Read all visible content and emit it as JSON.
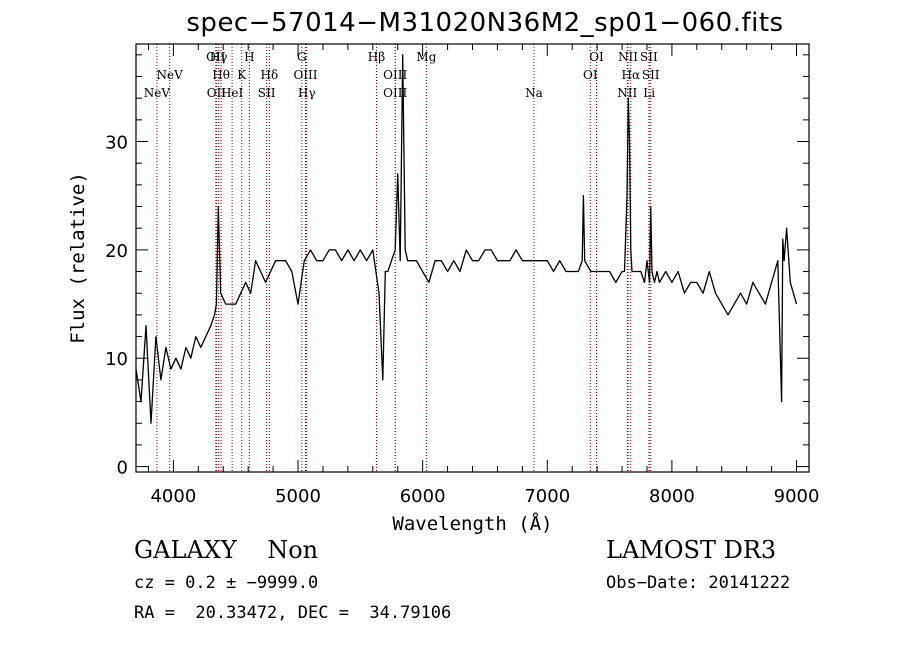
{
  "chart_data": {
    "type": "line",
    "title": "spec−57014−M31020N36M2_sp01−060.fits",
    "xlabel": "Wavelength (Å)",
    "ylabel": "Flux (relative)",
    "xlim": [
      3700,
      9100
    ],
    "ylim": [
      -0.5,
      39
    ],
    "xticks": [
      4000,
      5000,
      6000,
      7000,
      8000,
      9000
    ],
    "yticks": [
      0,
      10,
      20,
      30
    ],
    "line_color": "#000000",
    "marker_color": "#8b0000",
    "series": [
      {
        "name": "flux",
        "x": [
          3700,
          3740,
          3780,
          3820,
          3860,
          3900,
          3940,
          3980,
          4020,
          4060,
          4100,
          4140,
          4180,
          4220,
          4260,
          4300,
          4330,
          4345,
          4360,
          4380,
          4420,
          4460,
          4500,
          4540,
          4580,
          4620,
          4660,
          4700,
          4740,
          4780,
          4820,
          4860,
          4900,
          4950,
          5000,
          5050,
          5100,
          5150,
          5200,
          5250,
          5300,
          5350,
          5400,
          5450,
          5500,
          5550,
          5600,
          5650,
          5680,
          5700,
          5720,
          5750,
          5780,
          5800,
          5820,
          5840,
          5860,
          5880,
          5900,
          5950,
          6000,
          6050,
          6100,
          6150,
          6200,
          6250,
          6300,
          6350,
          6400,
          6450,
          6500,
          6550,
          6600,
          6650,
          6700,
          6750,
          6800,
          6850,
          6900,
          6950,
          7000,
          7050,
          7100,
          7150,
          7200,
          7250,
          7280,
          7290,
          7300,
          7350,
          7400,
          7450,
          7500,
          7550,
          7600,
          7620,
          7640,
          7650,
          7660,
          7670,
          7680,
          7700,
          7720,
          7750,
          7780,
          7800,
          7820,
          7830,
          7840,
          7860,
          7880,
          7900,
          7950,
          8000,
          8050,
          8100,
          8150,
          8200,
          8250,
          8300,
          8350,
          8400,
          8450,
          8500,
          8550,
          8600,
          8650,
          8700,
          8750,
          8800,
          8850,
          8880,
          8890,
          8900,
          8920,
          8950,
          9000
        ],
        "y": [
          9,
          6,
          13,
          4,
          12,
          8,
          11,
          9,
          10,
          9,
          11,
          10,
          12,
          11,
          12,
          13,
          14,
          15,
          24,
          16,
          15,
          15,
          15,
          16,
          17,
          16,
          19,
          18,
          17,
          18,
          19,
          19,
          19,
          18,
          15,
          19,
          20,
          19,
          19,
          20,
          20,
          19,
          20,
          19,
          20,
          19,
          20,
          16,
          8,
          18,
          18,
          19,
          20,
          27,
          19,
          38,
          20,
          19,
          19,
          19,
          18,
          17,
          19,
          19,
          18,
          19,
          18,
          20,
          19,
          19,
          20,
          20,
          19,
          19,
          19,
          20,
          19,
          19,
          19,
          19,
          19,
          18,
          19,
          18,
          18,
          18,
          19,
          25,
          19,
          18,
          18,
          18,
          18,
          17,
          18,
          18,
          25,
          34,
          30,
          20,
          18,
          18,
          18,
          18,
          17,
          19,
          17,
          24,
          18,
          17,
          18,
          17,
          18,
          17,
          18,
          16,
          17,
          17,
          16,
          18,
          16,
          15,
          14,
          15,
          16,
          15,
          17,
          16,
          15,
          17,
          19,
          6,
          21,
          19,
          22,
          17,
          15
        ]
      }
    ],
    "line_markers": [
      {
        "label": "NeV",
        "wavelength": 3868,
        "row": 3
      },
      {
        "label": "NeV",
        "wavelength": 3970,
        "row": 2
      },
      {
        "label": "OII",
        "wavelength": 4340,
        "row": 1
      },
      {
        "label": "OII",
        "wavelength": 4345,
        "row": 3
      },
      {
        "label": "Hγ",
        "wavelength": 4363,
        "row": 1
      },
      {
        "label": "Hθ",
        "wavelength": 4383,
        "row": 2
      },
      {
        "label": "HeI",
        "wavelength": 4471,
        "row": 3
      },
      {
        "label": "K",
        "wavelength": 4548,
        "row": 2
      },
      {
        "label": "H",
        "wavelength": 4610,
        "row": 1
      },
      {
        "label": "Hδ",
        "wavelength": 4770,
        "row": 2
      },
      {
        "label": "SII",
        "wavelength": 4748,
        "row": 3
      },
      {
        "label": "G",
        "wavelength": 5030,
        "row": 1
      },
      {
        "label": "OIII",
        "wavelength": 5060,
        "row": 2
      },
      {
        "label": "Hγ",
        "wavelength": 5070,
        "row": 3
      },
      {
        "label": "Hβ",
        "wavelength": 5630,
        "row": 1
      },
      {
        "label": "OIII",
        "wavelength": 5780,
        "row": 2
      },
      {
        "label": "OIII",
        "wavelength": 5780,
        "row": 3
      },
      {
        "label": "Mg",
        "wavelength": 6030,
        "row": 1
      },
      {
        "label": "Na",
        "wavelength": 6893,
        "row": 3
      },
      {
        "label": "OI",
        "wavelength": 7395,
        "row": 1
      },
      {
        "label": "OI",
        "wavelength": 7345,
        "row": 2
      },
      {
        "label": "NII",
        "wavelength": 7648,
        "row": 1
      },
      {
        "label": "Hα",
        "wavelength": 7670,
        "row": 2
      },
      {
        "label": "NII",
        "wavelength": 7642,
        "row": 3
      },
      {
        "label": "SII",
        "wavelength": 7815,
        "row": 1
      },
      {
        "label": "SII",
        "wavelength": 7830,
        "row": 2
      },
      {
        "label": "Li",
        "wavelength": 7818,
        "row": 3
      }
    ]
  },
  "footer": {
    "object_line": "GALAXY    Non",
    "cz_line": "cz = 0.2 ± −9999.0",
    "radec_line": "RA =  20.33472, DEC =  34.79106",
    "survey": "LAMOST DR3",
    "obs_date": "Obs−Date: 20141222"
  }
}
